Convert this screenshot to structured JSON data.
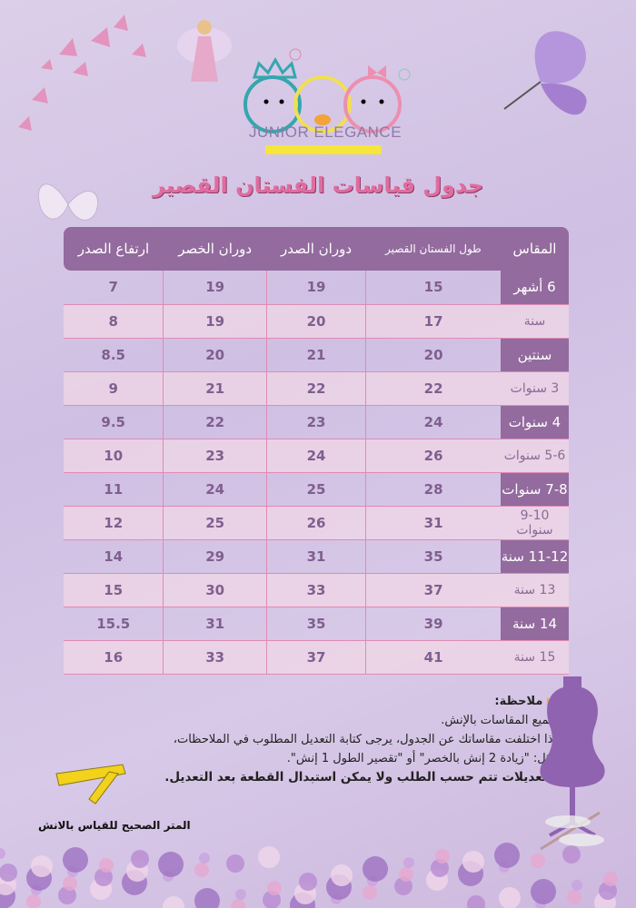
{
  "brand": {
    "name": "JUNIOR ELEGANCE"
  },
  "title": "جدول قياسات الفستان القصير",
  "table": {
    "headers": [
      "المقاس",
      "طول الفستان القصير",
      "دوران الصدر",
      "دوران الخصر",
      "ارتفاع الصدر"
    ],
    "rows": [
      {
        "size": "6 أشهر",
        "length": "15",
        "chest": "19",
        "waist": "19",
        "chest_height": "7",
        "highlight": true
      },
      {
        "size": "سنة",
        "length": "17",
        "chest": "20",
        "waist": "19",
        "chest_height": "8",
        "highlight": false
      },
      {
        "size": "سنتين",
        "length": "20",
        "chest": "21",
        "waist": "20",
        "chest_height": "8.5",
        "highlight": true
      },
      {
        "size": "3 سنوات",
        "length": "22",
        "chest": "22",
        "waist": "21",
        "chest_height": "9",
        "highlight": false
      },
      {
        "size": "4 سنوات",
        "length": "24",
        "chest": "23",
        "waist": "22",
        "chest_height": "9.5",
        "highlight": true
      },
      {
        "size": "5-6 سنوات",
        "length": "26",
        "chest": "24",
        "waist": "23",
        "chest_height": "10",
        "highlight": false
      },
      {
        "size": "7-8 سنوات",
        "length": "28",
        "chest": "25",
        "waist": "24",
        "chest_height": "11",
        "highlight": true
      },
      {
        "size": "9-10 سنوات",
        "length": "31",
        "chest": "26",
        "waist": "25",
        "chest_height": "12",
        "highlight": false
      },
      {
        "size": "11-12 سنة",
        "length": "35",
        "chest": "31",
        "waist": "29",
        "chest_height": "14",
        "highlight": true
      },
      {
        "size": "13 سنة",
        "length": "37",
        "chest": "33",
        "waist": "30",
        "chest_height": "15",
        "highlight": false
      },
      {
        "size": "14 سنة",
        "length": "39",
        "chest": "35",
        "waist": "31",
        "chest_height": "15.5",
        "highlight": true
      },
      {
        "size": "15 سنة",
        "length": "41",
        "chest": "37",
        "waist": "33",
        "chest_height": "16",
        "highlight": false
      }
    ]
  },
  "notes": {
    "heading": "ملاحظة:",
    "lines": [
      "جميع المقاسات بالإنش.",
      "إذا اختلفت مقاساتك عن الجدول، يرجى كتابة التعديل المطلوب في الملاحظات،",
      "مثل: \"زيادة 2 إنش بالخصر\" أو \"تقصير الطول 1 إنش\"."
    ],
    "bold_line": "التعديلات تتم حسب الطلب ولا يمكن استبدال القطعة بعد التعديل."
  },
  "tape_label": "المتر الصحيح  للقياس بالانش",
  "colors": {
    "header": "#936b9e",
    "title": "#e06d9f",
    "grid": "#e08ab6",
    "background": "#d6c7e7"
  }
}
